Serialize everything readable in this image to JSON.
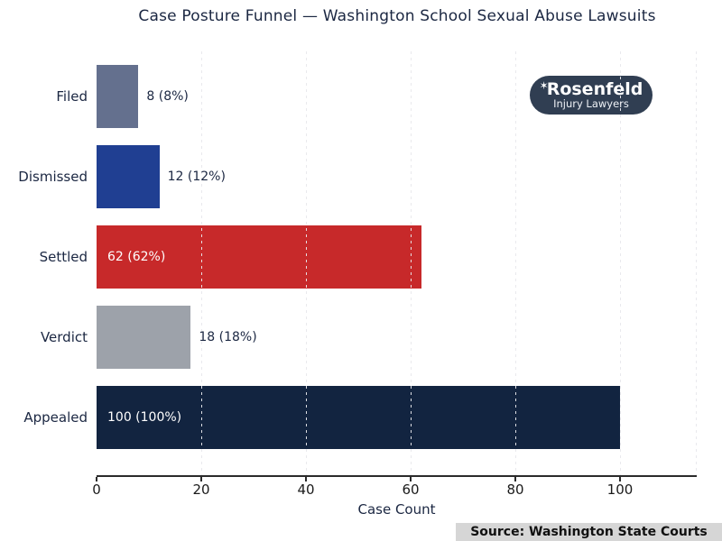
{
  "logo": {
    "name": "Rosenfeld",
    "tagline": "Injury Lawyers",
    "star": "✶",
    "bg_color": "#303e52"
  },
  "source": {
    "label": "Source: Washington State Courts",
    "bg_color": "#d6d6d6"
  },
  "chart_data": {
    "type": "bar",
    "orientation": "horizontal",
    "title": "Case Posture Funnel — Washington School Sexual Abuse Lawsuits",
    "xlabel": "Case Count",
    "categories": [
      "Filed",
      "Dismissed",
      "Settled",
      "Verdict",
      "Appealed"
    ],
    "values": [
      8,
      12,
      62,
      18,
      100
    ],
    "value_labels": [
      "8 (8%)",
      "12 (12%)",
      "62 (62%)",
      "18 (18%)",
      "100 (100%)"
    ],
    "bar_colors": [
      "#64708e",
      "#203f92",
      "#c7292a",
      "#9da2aa",
      "#122440"
    ],
    "label_inside": [
      false,
      false,
      true,
      false,
      true
    ],
    "xticks": [
      0,
      20,
      40,
      60,
      80,
      100
    ],
    "xlim": [
      0,
      114.7
    ],
    "grid": "dotted-vertical",
    "legend": "none"
  }
}
